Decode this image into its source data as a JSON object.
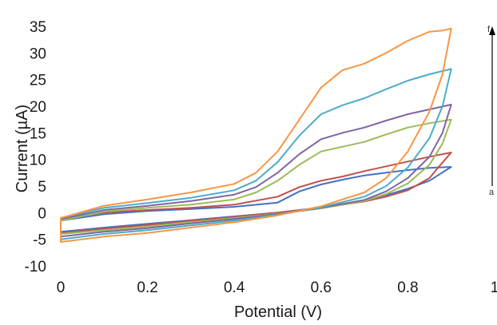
{
  "chart_data": {
    "type": "line",
    "xlabel": "Potential (V)",
    "ylabel": "Current (µA)",
    "xlim": [
      0,
      1
    ],
    "ylim": [
      -10,
      35
    ],
    "x_ticks": [
      "0",
      "0.2",
      "0.4",
      "0.6",
      "0.8",
      "1"
    ],
    "y_ticks": [
      "-10",
      "-5",
      "0",
      "5",
      "10",
      "15",
      "20",
      "25",
      "30",
      "35"
    ],
    "grid": false,
    "legend": "none",
    "annotation": {
      "top_label": "f",
      "bottom_label": "a"
    },
    "series": [
      {
        "color": "#4472c4",
        "forward": [
          [
            0,
            -1.5
          ],
          [
            0.1,
            -0.3
          ],
          [
            0.2,
            0.3
          ],
          [
            0.3,
            0.7
          ],
          [
            0.4,
            1.1
          ],
          [
            0.5,
            1.9
          ],
          [
            0.55,
            4.0
          ],
          [
            0.6,
            5.3
          ],
          [
            0.65,
            6.2
          ],
          [
            0.7,
            7.0
          ],
          [
            0.75,
            7.5
          ],
          [
            0.8,
            8.0
          ],
          [
            0.85,
            8.4
          ],
          [
            0.9,
            8.6
          ]
        ],
        "reverse": [
          [
            0.9,
            8.6
          ],
          [
            0.85,
            6.0
          ],
          [
            0.8,
            4.5
          ],
          [
            0.75,
            3.3
          ],
          [
            0.7,
            2.3
          ],
          [
            0.6,
            1.0
          ],
          [
            0.5,
            0.0
          ],
          [
            0.4,
            -0.7
          ],
          [
            0.3,
            -1.4
          ],
          [
            0.2,
            -2.1
          ],
          [
            0.1,
            -2.8
          ],
          [
            0,
            -3.6
          ]
        ]
      },
      {
        "color": "#c0504d",
        "forward": [
          [
            0,
            -1.2
          ],
          [
            0.1,
            0.0
          ],
          [
            0.2,
            0.5
          ],
          [
            0.3,
            0.9
          ],
          [
            0.4,
            1.5
          ],
          [
            0.5,
            3.0
          ],
          [
            0.55,
            4.8
          ],
          [
            0.6,
            6.0
          ],
          [
            0.65,
            6.8
          ],
          [
            0.7,
            7.8
          ],
          [
            0.75,
            8.7
          ],
          [
            0.8,
            9.6
          ],
          [
            0.85,
            10.5
          ],
          [
            0.9,
            11.3
          ]
        ],
        "reverse": [
          [
            0.9,
            11.3
          ],
          [
            0.87,
            8.5
          ],
          [
            0.85,
            6.5
          ],
          [
            0.8,
            4.2
          ],
          [
            0.75,
            3.0
          ],
          [
            0.7,
            2.1
          ],
          [
            0.6,
            0.9
          ],
          [
            0.5,
            0.0
          ],
          [
            0.4,
            -0.8
          ],
          [
            0.3,
            -1.5
          ],
          [
            0.2,
            -2.3
          ],
          [
            0.1,
            -3.0
          ],
          [
            0,
            -3.8
          ]
        ]
      },
      {
        "color": "#9bbb59",
        "forward": [
          [
            0,
            -1.5
          ],
          [
            0.1,
            0.2
          ],
          [
            0.2,
            0.9
          ],
          [
            0.3,
            1.5
          ],
          [
            0.4,
            2.5
          ],
          [
            0.45,
            3.8
          ],
          [
            0.5,
            6.0
          ],
          [
            0.55,
            9.0
          ],
          [
            0.6,
            11.5
          ],
          [
            0.65,
            12.4
          ],
          [
            0.7,
            13.3
          ],
          [
            0.75,
            14.7
          ],
          [
            0.8,
            16.0
          ],
          [
            0.85,
            16.8
          ],
          [
            0.9,
            17.5
          ]
        ],
        "reverse": [
          [
            0.9,
            17.5
          ],
          [
            0.88,
            13.0
          ],
          [
            0.85,
            9.0
          ],
          [
            0.8,
            5.5
          ],
          [
            0.75,
            3.5
          ],
          [
            0.7,
            2.2
          ],
          [
            0.6,
            0.8
          ],
          [
            0.5,
            -0.2
          ],
          [
            0.4,
            -1.0
          ],
          [
            0.3,
            -1.8
          ],
          [
            0.2,
            -2.6
          ],
          [
            0.1,
            -3.3
          ],
          [
            0,
            -4.0
          ]
        ]
      },
      {
        "color": "#8064a2",
        "forward": [
          [
            0,
            -1.2
          ],
          [
            0.1,
            0.5
          ],
          [
            0.2,
            1.3
          ],
          [
            0.3,
            2.2
          ],
          [
            0.4,
            3.4
          ],
          [
            0.45,
            4.8
          ],
          [
            0.5,
            7.5
          ],
          [
            0.55,
            11.0
          ],
          [
            0.6,
            13.8
          ],
          [
            0.65,
            15.0
          ],
          [
            0.7,
            16.0
          ],
          [
            0.75,
            17.3
          ],
          [
            0.8,
            18.5
          ],
          [
            0.85,
            19.4
          ],
          [
            0.9,
            20.3
          ]
        ],
        "reverse": [
          [
            0.9,
            20.3
          ],
          [
            0.88,
            15.0
          ],
          [
            0.85,
            10.5
          ],
          [
            0.8,
            6.5
          ],
          [
            0.75,
            4.0
          ],
          [
            0.7,
            2.4
          ],
          [
            0.6,
            0.9
          ],
          [
            0.5,
            -0.3
          ],
          [
            0.4,
            -1.2
          ],
          [
            0.3,
            -2.0
          ],
          [
            0.2,
            -2.9
          ],
          [
            0.1,
            -3.6
          ],
          [
            0,
            -4.5
          ]
        ]
      },
      {
        "color": "#4bacc6",
        "forward": [
          [
            0,
            -1.0
          ],
          [
            0.1,
            0.9
          ],
          [
            0.2,
            1.8
          ],
          [
            0.3,
            2.8
          ],
          [
            0.4,
            4.2
          ],
          [
            0.45,
            6.0
          ],
          [
            0.5,
            9.5
          ],
          [
            0.55,
            14.5
          ],
          [
            0.6,
            18.5
          ],
          [
            0.65,
            20.2
          ],
          [
            0.7,
            21.5
          ],
          [
            0.75,
            23.2
          ],
          [
            0.8,
            24.8
          ],
          [
            0.85,
            26.0
          ],
          [
            0.9,
            27.0
          ]
        ],
        "reverse": [
          [
            0.9,
            27.0
          ],
          [
            0.88,
            20.0
          ],
          [
            0.85,
            14.0
          ],
          [
            0.8,
            8.5
          ],
          [
            0.75,
            5.0
          ],
          [
            0.7,
            3.0
          ],
          [
            0.6,
            1.0
          ],
          [
            0.5,
            -0.4
          ],
          [
            0.4,
            -1.5
          ],
          [
            0.3,
            -2.4
          ],
          [
            0.2,
            -3.3
          ],
          [
            0.1,
            -4.0
          ],
          [
            0,
            -5.0
          ]
        ]
      },
      {
        "color": "#f79646",
        "forward": [
          [
            0,
            -1.0
          ],
          [
            0.1,
            1.3
          ],
          [
            0.2,
            2.5
          ],
          [
            0.3,
            3.8
          ],
          [
            0.4,
            5.4
          ],
          [
            0.45,
            7.5
          ],
          [
            0.5,
            11.5
          ],
          [
            0.55,
            17.5
          ],
          [
            0.6,
            23.5
          ],
          [
            0.65,
            26.8
          ],
          [
            0.7,
            28.0
          ],
          [
            0.75,
            30.0
          ],
          [
            0.8,
            32.3
          ],
          [
            0.85,
            34.0
          ],
          [
            0.88,
            34.2
          ],
          [
            0.9,
            34.6
          ]
        ],
        "reverse": [
          [
            0.9,
            34.6
          ],
          [
            0.88,
            26.0
          ],
          [
            0.85,
            19.0
          ],
          [
            0.8,
            11.5
          ],
          [
            0.75,
            6.5
          ],
          [
            0.7,
            3.8
          ],
          [
            0.6,
            1.2
          ],
          [
            0.5,
            -0.5
          ],
          [
            0.4,
            -1.8
          ],
          [
            0.3,
            -2.8
          ],
          [
            0.2,
            -3.8
          ],
          [
            0.1,
            -4.5
          ],
          [
            0,
            -5.5
          ]
        ]
      }
    ]
  }
}
